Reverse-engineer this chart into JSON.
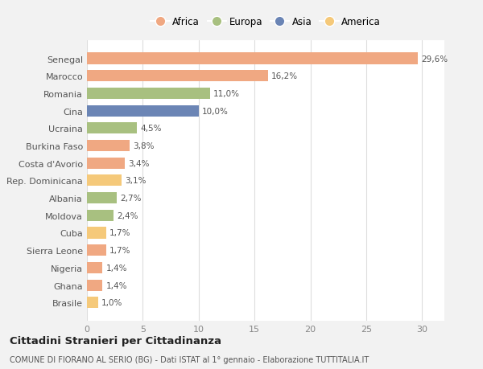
{
  "categories": [
    "Brasile",
    "Ghana",
    "Nigeria",
    "Sierra Leone",
    "Cuba",
    "Moldova",
    "Albania",
    "Rep. Dominicana",
    "Costa d'Avorio",
    "Burkina Faso",
    "Ucraina",
    "Cina",
    "Romania",
    "Marocco",
    "Senegal"
  ],
  "values": [
    1.0,
    1.4,
    1.4,
    1.7,
    1.7,
    2.4,
    2.7,
    3.1,
    3.4,
    3.8,
    4.5,
    10.0,
    11.0,
    16.2,
    29.6
  ],
  "labels": [
    "1,0%",
    "1,4%",
    "1,4%",
    "1,7%",
    "1,7%",
    "2,4%",
    "2,7%",
    "3,1%",
    "3,4%",
    "3,8%",
    "4,5%",
    "10,0%",
    "11,0%",
    "16,2%",
    "29,6%"
  ],
  "colors": [
    "#f5c97a",
    "#f0a882",
    "#f0a882",
    "#f0a882",
    "#f5c97a",
    "#a8c080",
    "#a8c080",
    "#f5c97a",
    "#f0a882",
    "#f0a882",
    "#a8c080",
    "#6b85b5",
    "#a8c080",
    "#f0a882",
    "#f0a882"
  ],
  "legend": [
    {
      "label": "Africa",
      "color": "#f0a882"
    },
    {
      "label": "Europa",
      "color": "#a8c080"
    },
    {
      "label": "Asia",
      "color": "#6b85b5"
    },
    {
      "label": "America",
      "color": "#f5c97a"
    }
  ],
  "title": "Cittadini Stranieri per Cittadinanza",
  "subtitle": "COMUNE DI FIORANO AL SERIO (BG) - Dati ISTAT al 1° gennaio - Elaborazione TUTTITALIA.IT",
  "xlim": [
    0,
    32
  ],
  "xticks": [
    0,
    5,
    10,
    15,
    20,
    25,
    30
  ],
  "background_color": "#f2f2f2",
  "bar_background_color": "#ffffff"
}
